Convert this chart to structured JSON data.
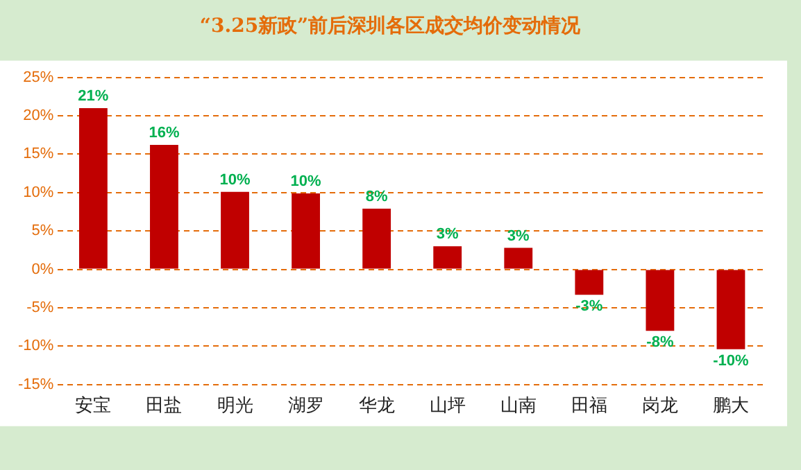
{
  "chart_data": {
    "type": "bar",
    "title": "“3.25新政”前后深圳各区成交均价变动情况",
    "categories": [
      "安宝",
      "田盐",
      "明光",
      "湖罗",
      "华龙",
      "山坪",
      "山南",
      "田福",
      "岗龙",
      "鹏大"
    ],
    "values": [
      21,
      16.2,
      10.1,
      9.9,
      7.9,
      3,
      2.8,
      -3.3,
      -8,
      -10.4
    ],
    "value_labels": [
      "21%",
      "16%",
      "10%",
      "10%",
      "8%",
      "3%",
      "3%",
      "-3%",
      "-8%",
      "-10%"
    ],
    "color": "#c00000",
    "ylim": [
      -15,
      25
    ],
    "yticks": [
      {
        "value": -15,
        "label": "-15%"
      },
      {
        "value": -10,
        "label": "-10%"
      },
      {
        "value": -5,
        "label": "-5%"
      },
      {
        "value": 0,
        "label": "0%"
      },
      {
        "value": 5,
        "label": "5%"
      },
      {
        "value": 10,
        "label": "10%"
      },
      {
        "value": 15,
        "label": "15%"
      },
      {
        "value": 20,
        "label": "20%"
      },
      {
        "value": 25,
        "label": "25%"
      }
    ],
    "grid": "y",
    "legend": false
  }
}
